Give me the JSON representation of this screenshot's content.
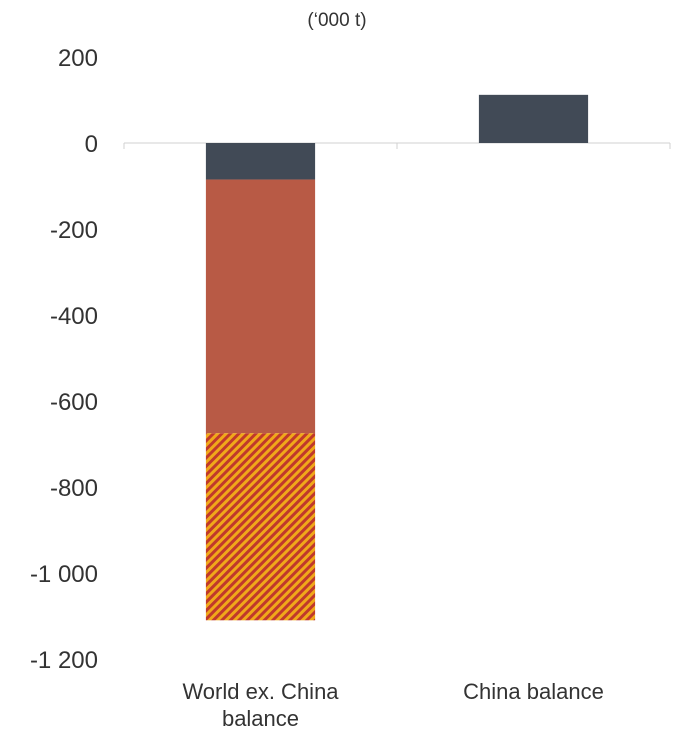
{
  "chart_data": {
    "type": "bar",
    "stacked": true,
    "unit_label": "(‘000 t)",
    "ylim": [
      -1200,
      200
    ],
    "yticks": [
      200,
      0,
      -200,
      -400,
      -600,
      -800,
      -1000,
      -1200
    ],
    "ytick_labels": [
      "200",
      "0",
      "-200",
      "-400",
      "-600",
      "-800",
      "-1 000",
      "-1 200"
    ],
    "categories": [
      {
        "lines": [
          "World ex. China",
          "balance"
        ]
      },
      {
        "lines": [
          "China balance"
        ]
      }
    ],
    "series": [
      {
        "color": "#414a56",
        "pattern": "solid",
        "values": [
          -85,
          112
        ]
      },
      {
        "color": "#b85a45",
        "pattern": "solid",
        "values": [
          -590,
          0
        ]
      },
      {
        "color": "#f0a81a",
        "pattern": "hatch",
        "hatch_color": "#c0392b",
        "values": [
          -435,
          0
        ]
      }
    ],
    "grid": false,
    "legend": "none"
  }
}
